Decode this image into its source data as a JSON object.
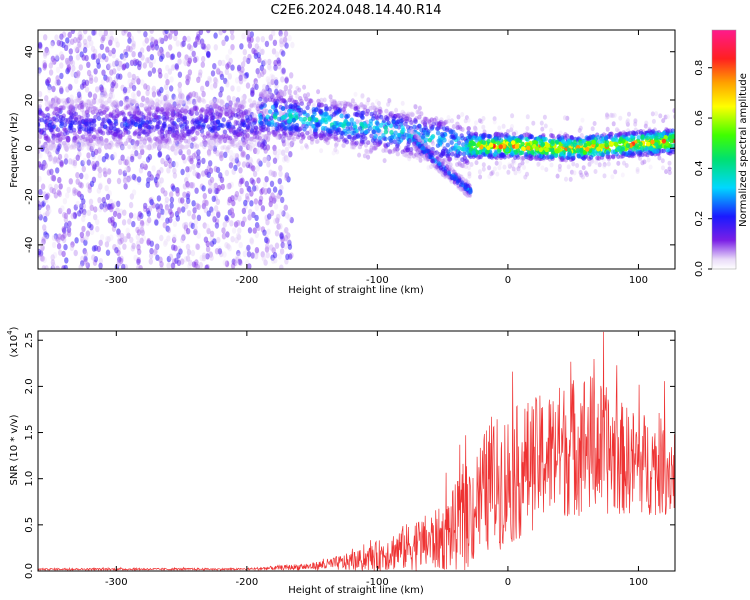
{
  "title": "C2E6.2024.048.14.40.R14",
  "chart_data": [
    {
      "type": "heatmap",
      "xlabel": "Height of straight line (km)",
      "ylabel": "Frequency (Hz)",
      "xlim": [
        -360,
        128
      ],
      "ylim": [
        -50,
        49
      ],
      "xticks": [
        -300,
        -200,
        -100,
        0,
        100
      ],
      "yticks": [
        -40,
        -20,
        0,
        20,
        40
      ],
      "colorbar": {
        "label": "Normalized spectral amplitude",
        "range": [
          0.0,
          0.95
        ],
        "ticks": [
          0.0,
          0.2,
          0.4,
          0.6,
          0.8
        ]
      },
      "ridge": {
        "description_points": [
          {
            "x": -190,
            "y": 14
          },
          {
            "x": -150,
            "y": 12
          },
          {
            "x": -100,
            "y": 8
          },
          {
            "x": -60,
            "y": 4
          },
          {
            "x": -30,
            "y": 1
          },
          {
            "x": 0,
            "y": 1
          },
          {
            "x": 50,
            "y": 0
          },
          {
            "x": 100,
            "y": 2
          },
          {
            "x": 128,
            "y": 3
          }
        ],
        "branch": [
          {
            "x": -75,
            "y": 5
          },
          {
            "x": -50,
            "y": -8
          },
          {
            "x": -28,
            "y": -18
          }
        ]
      }
    },
    {
      "type": "line",
      "xlabel": "Height of straight line (km)",
      "ylabel": "SNR (10 * v/v)",
      "yscale_label": "(x10",
      "yscale_exp": "4",
      "xlim": [
        -360,
        128
      ],
      "ylim": [
        0,
        2.6
      ],
      "xticks": [
        -300,
        -200,
        -100,
        0,
        100
      ],
      "yticks": [
        0.0,
        0.5,
        1.0,
        1.5,
        2.0,
        2.5
      ],
      "color": "#ee3333",
      "envelope": [
        {
          "x": -360,
          "base": 0.02,
          "spread": 0.01
        },
        {
          "x": -200,
          "base": 0.02,
          "spread": 0.01
        },
        {
          "x": -150,
          "base": 0.05,
          "spread": 0.04
        },
        {
          "x": -110,
          "base": 0.12,
          "spread": 0.12
        },
        {
          "x": -80,
          "base": 0.25,
          "spread": 0.25
        },
        {
          "x": -50,
          "base": 0.35,
          "spread": 0.35
        },
        {
          "x": -30,
          "base": 0.6,
          "spread": 0.6
        },
        {
          "x": -15,
          "base": 0.9,
          "spread": 0.7
        },
        {
          "x": 0,
          "base": 1.0,
          "spread": 0.75
        },
        {
          "x": 30,
          "base": 1.25,
          "spread": 0.7
        },
        {
          "x": 60,
          "base": 1.4,
          "spread": 0.8
        },
        {
          "x": 90,
          "base": 1.2,
          "spread": 0.6
        },
        {
          "x": 128,
          "base": 1.1,
          "spread": 0.5
        }
      ]
    }
  ]
}
